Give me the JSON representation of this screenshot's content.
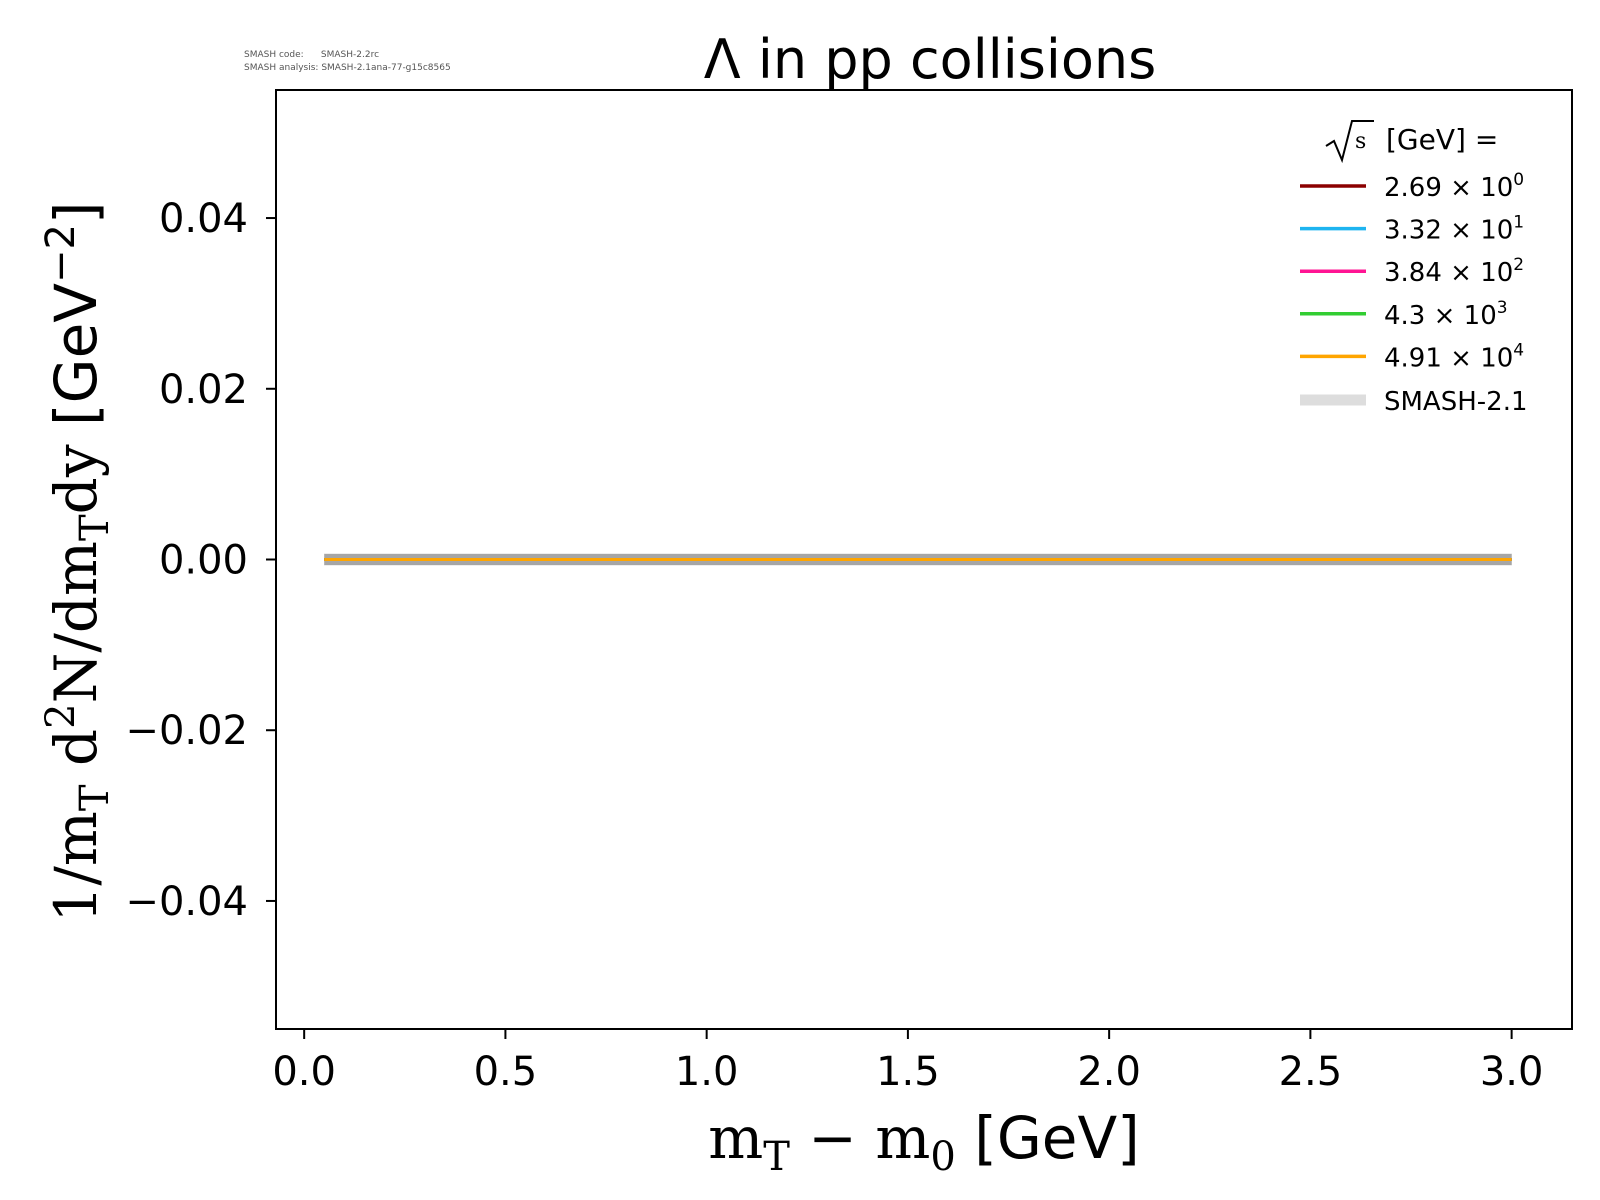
{
  "meta": {
    "code_label": "SMASH code:",
    "code_value": "SMASH-2.2rc",
    "analysis_label": "SMASH analysis:",
    "analysis_value": "SMASH-2.1ana-77-g15c8565"
  },
  "chart_data": {
    "type": "line",
    "title": "Λ in pp collisions",
    "xlabel": {
      "main": "m",
      "sub": "T",
      "mid": " − m",
      "sub2": "0",
      "unit": " [GeV]"
    },
    "ylabel": {
      "p1": "1/m",
      "s1": "T",
      "p2": " d",
      "sup1": "2",
      "p3": "N/dm",
      "s2": "T",
      "p4": "dy",
      "unit": " [GeV",
      "sup2": "−2",
      "unit_end": "]"
    },
    "xlim": [
      -0.07,
      3.15
    ],
    "ylim": [
      -0.055,
      0.055
    ],
    "xticks": [
      0.0,
      0.5,
      1.0,
      1.5,
      2.0,
      2.5,
      3.0
    ],
    "xtick_labels": [
      "0.0",
      "0.5",
      "1.0",
      "1.5",
      "2.0",
      "2.5",
      "3.0"
    ],
    "yticks": [
      0.04,
      0.02,
      0.0,
      -0.02,
      -0.04
    ],
    "ytick_labels": [
      "0.04",
      "0.02",
      "0.00",
      "−0.02",
      "−0.04"
    ],
    "grid": false,
    "legend": {
      "position": "top-right",
      "title_prefix": "s",
      "title_suffix": " [GeV] =",
      "entries": [
        {
          "mantissa": "2.69",
          "exp": "0",
          "color": "#8b0000"
        },
        {
          "mantissa": "3.32",
          "exp": "1",
          "color": "#1eb4f0"
        },
        {
          "mantissa": "3.84",
          "exp": "2",
          "color": "#ff1493"
        },
        {
          "mantissa": "4.3",
          "exp": "3",
          "color": "#32cd32"
        },
        {
          "mantissa": "4.91",
          "exp": "4",
          "color": "#ffa500"
        }
      ],
      "model_label": "SMASH-2.1",
      "model_color": "#dddddd"
    },
    "series": [
      {
        "name": "2.69 × 10^0",
        "color": "#8b0000",
        "x": [
          0.05,
          3.0
        ],
        "y": [
          0.0,
          0.0
        ]
      },
      {
        "name": "3.32 × 10^1",
        "color": "#1eb4f0",
        "x": [
          0.05,
          3.0
        ],
        "y": [
          0.0,
          0.0
        ]
      },
      {
        "name": "3.84 × 10^2",
        "color": "#ff1493",
        "x": [
          0.05,
          3.0
        ],
        "y": [
          0.0,
          0.0
        ]
      },
      {
        "name": "4.3 × 10^3",
        "color": "#32cd32",
        "x": [
          0.05,
          3.0
        ],
        "y": [
          0.0,
          0.0
        ]
      },
      {
        "name": "4.91 × 10^4",
        "color": "#ffa500",
        "x": [
          0.05,
          3.0
        ],
        "y": [
          0.0,
          0.0
        ]
      }
    ]
  }
}
